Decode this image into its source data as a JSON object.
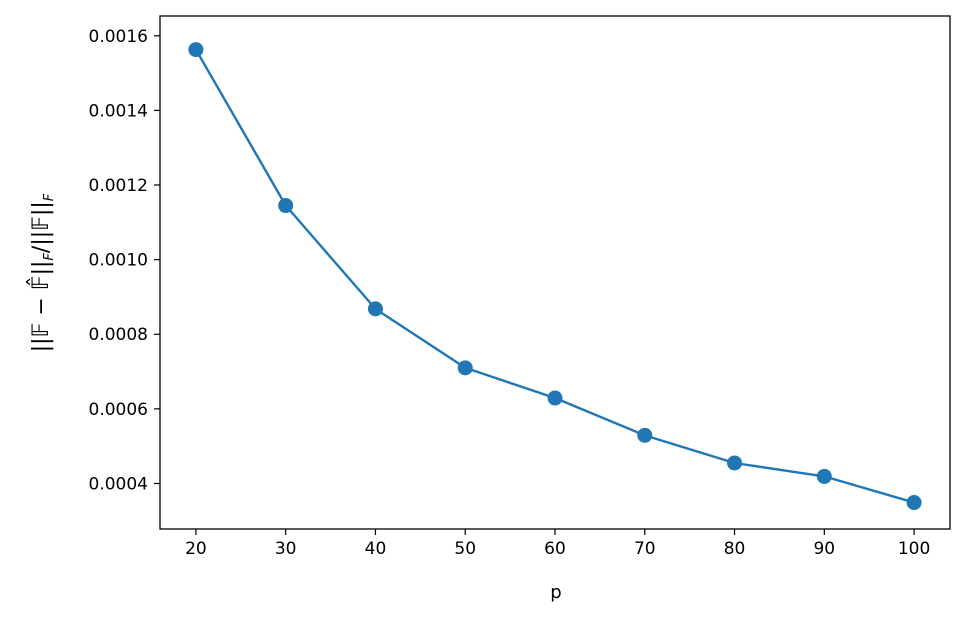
{
  "chart_data": {
    "type": "line",
    "title": "",
    "xlabel": "p",
    "ylabel": "||𝔽−𝔽̂||F/||𝔽||F",
    "x": [
      20,
      30,
      40,
      50,
      60,
      70,
      80,
      90,
      100
    ],
    "series": [
      {
        "values": [
          0.001563,
          0.001145,
          0.000868,
          0.00071,
          0.000629,
          0.000529,
          0.000455,
          0.000419,
          0.000349
        ],
        "color": "#1f77b4",
        "marker": "circle"
      }
    ],
    "xticks": [
      20,
      30,
      40,
      50,
      60,
      70,
      80,
      90,
      100
    ],
    "xtick_labels": [
      "20",
      "30",
      "40",
      "50",
      "60",
      "70",
      "80",
      "90",
      "100"
    ],
    "yticks": [
      0.0004,
      0.0006,
      0.0008,
      0.001,
      0.0012,
      0.0014,
      0.0016
    ],
    "ytick_labels": [
      "0.0004",
      "0.0006",
      "0.0008",
      "0.0010",
      "0.0012",
      "0.0014",
      "0.0016"
    ],
    "xlim": [
      16,
      104
    ],
    "ylim": [
      0.000278,
      0.001653
    ],
    "grid": false,
    "legend": "none"
  }
}
